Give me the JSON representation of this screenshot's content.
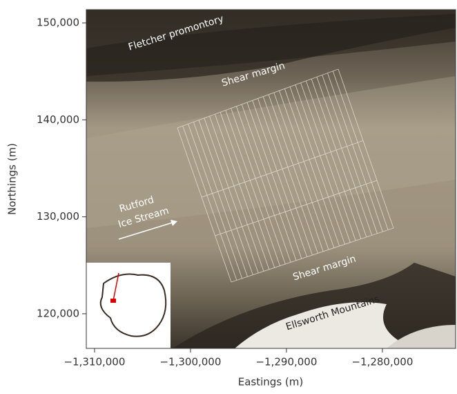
{
  "chart_data": {
    "type": "map",
    "xlabel": "Eastings (m)",
    "ylabel": "Northings (m)",
    "xlim": [
      -1310860,
      -1272370
    ],
    "ylim": [
      116430,
      151360
    ],
    "xticks": [
      {
        "value": -1310000,
        "label": "−1,310,000"
      },
      {
        "value": -1300000,
        "label": "−1,300,000"
      },
      {
        "value": -1290000,
        "label": "−1,290,000"
      },
      {
        "value": -1280000,
        "label": "−1,280,000"
      }
    ],
    "yticks": [
      {
        "value": 120000,
        "label": "120,000"
      },
      {
        "value": 130000,
        "label": "130,000"
      },
      {
        "value": 140000,
        "label": "140,000"
      },
      {
        "value": 150000,
        "label": "150,000"
      }
    ],
    "annotations": [
      "Fletcher promontory",
      "Shear  margin",
      "Rutford",
      "Ice Stream",
      "Shear  margin",
      "Ellsworth Mountains"
    ]
  }
}
